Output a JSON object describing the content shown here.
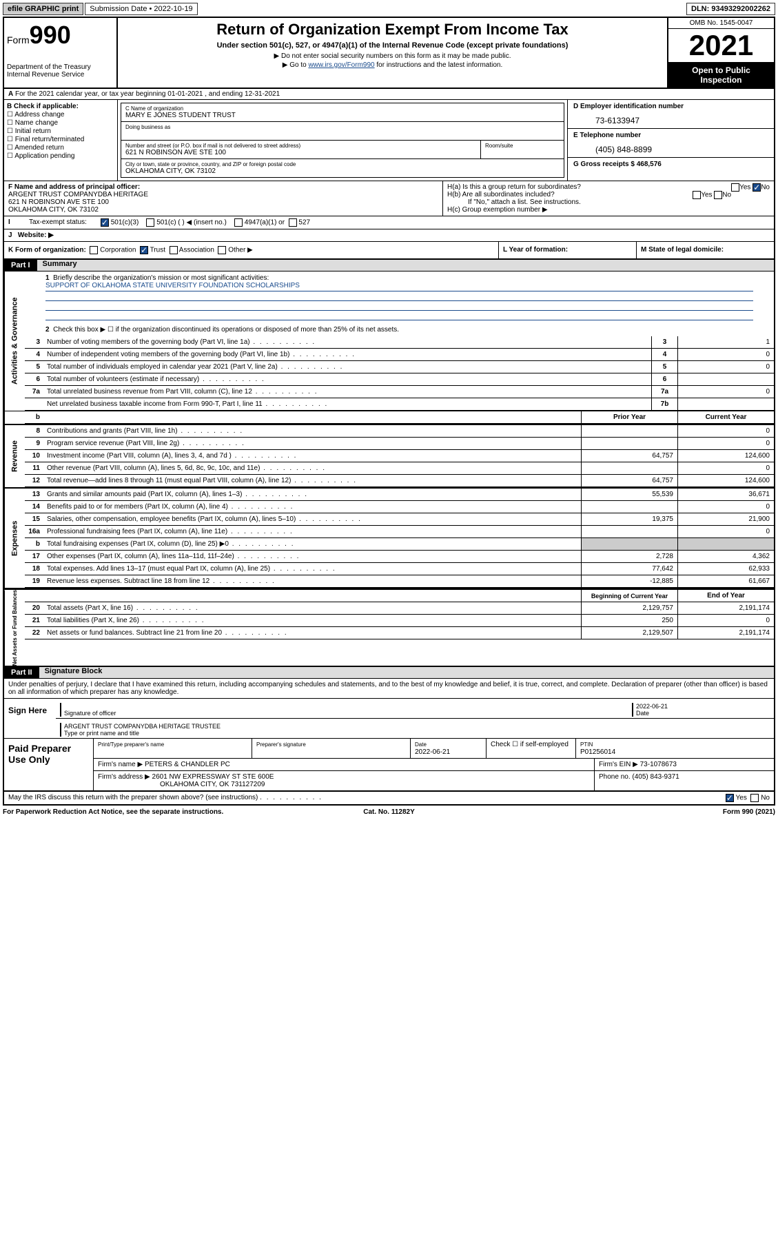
{
  "top": {
    "efile": "efile GRAPHIC print",
    "submission_label": "Submission Date • 2022-10-19",
    "dln": "DLN: 93493292002262"
  },
  "header": {
    "form_prefix": "Form",
    "form_num": "990",
    "dept": "Department of the Treasury\nInternal Revenue Service",
    "title": "Return of Organization Exempt From Income Tax",
    "sub": "Under section 501(c), 527, or 4947(a)(1) of the Internal Revenue Code (except private foundations)",
    "note1": "▶ Do not enter social security numbers on this form as it may be made public.",
    "note2_pre": "▶ Go to ",
    "note2_link": "www.irs.gov/Form990",
    "note2_post": " for instructions and the latest information.",
    "omb": "OMB No. 1545-0047",
    "year": "2021",
    "otp": "Open to Public Inspection"
  },
  "rowA": {
    "text": "For the 2021 calendar year, or tax year beginning 01-01-2021   , and ending 12-31-2021"
  },
  "colB": {
    "label": "B Check if applicable:",
    "items": [
      "Address change",
      "Name change",
      "Initial return",
      "Final return/terminated",
      "Amended return",
      "Application pending"
    ]
  },
  "boxC": {
    "c_label": "C Name of organization",
    "name": "MARY E JONES STUDENT TRUST",
    "dba": "Doing business as",
    "addr_label": "Number and street (or P.O. box if mail is not delivered to street address)",
    "addr": "621 N ROBINSON AVE STE 100",
    "suite": "Room/suite",
    "city_label": "City or town, state or province, country, and ZIP or foreign postal code",
    "city": "OKLAHOMA CITY, OK  73102"
  },
  "colD": {
    "d_label": "D Employer identification number",
    "ein": "73-6133947",
    "e_label": "E Telephone number",
    "phone": "(405) 848-8899",
    "g_label": "G Gross receipts $ 468,576"
  },
  "rowF": {
    "f_label": "F  Name and address of principal officer:",
    "f_val": "ARGENT TRUST COMPANYDBA HERITAGE\n621 N ROBINSON AVE STE 100\nOKLAHOMA CITY, OK  73102",
    "ha": "H(a)  Is this a group return for subordinates?",
    "hb": "H(b)  Are all subordinates included?",
    "hb_note": "If \"No,\" attach a list. See instructions.",
    "hc": "H(c)  Group exemption number ▶",
    "yes": "Yes",
    "no": "No"
  },
  "rowI": {
    "label": "Tax-exempt status:",
    "opts": [
      "501(c)(3)",
      "501(c) (  ) ◀ (insert no.)",
      "4947(a)(1) or",
      "527"
    ]
  },
  "rowJ": {
    "label": "Website: ▶"
  },
  "rowK": {
    "label": "K Form of organization:",
    "opts": [
      "Corporation",
      "Trust",
      "Association",
      "Other ▶"
    ],
    "l": "L Year of formation:",
    "m": "M State of legal domicile:"
  },
  "partI": {
    "hdr": "Part I",
    "title": "Summary",
    "mission_label": "Briefly describe the organization's mission or most significant activities:",
    "mission": "SUPPORT OF OKLAHOMA STATE UNIVERSITY FOUNDATION SCHOLARSHIPS",
    "line2": "Check this box ▶ ☐  if the organization discontinued its operations or disposed of more than 25% of its net assets.",
    "vtabs": {
      "ag": "Activities & Governance",
      "rev": "Revenue",
      "exp": "Expenses",
      "nab": "Net Assets or Fund Balances"
    },
    "cols": {
      "prior": "Prior Year",
      "current": "Current Year",
      "boy": "Beginning of Current Year",
      "eoy": "End of Year"
    },
    "lines": [
      {
        "n": "3",
        "t": "Number of voting members of the governing body (Part VI, line 1a)",
        "box": "3",
        "v": "1"
      },
      {
        "n": "4",
        "t": "Number of independent voting members of the governing body (Part VI, line 1b)",
        "box": "4",
        "v": "0"
      },
      {
        "n": "5",
        "t": "Total number of individuals employed in calendar year 2021 (Part V, line 2a)",
        "box": "5",
        "v": "0"
      },
      {
        "n": "6",
        "t": "Total number of volunteers (estimate if necessary)",
        "box": "6",
        "v": ""
      },
      {
        "n": "7a",
        "t": "Total unrelated business revenue from Part VIII, column (C), line 12",
        "box": "7a",
        "v": "0"
      },
      {
        "n": "",
        "t": "Net unrelated business taxable income from Form 990-T, Part I, line 11",
        "box": "7b",
        "v": ""
      }
    ],
    "rev": [
      {
        "n": "8",
        "t": "Contributions and grants (Part VIII, line 1h)",
        "p": "",
        "c": "0"
      },
      {
        "n": "9",
        "t": "Program service revenue (Part VIII, line 2g)",
        "p": "",
        "c": "0"
      },
      {
        "n": "10",
        "t": "Investment income (Part VIII, column (A), lines 3, 4, and 7d )",
        "p": "64,757",
        "c": "124,600"
      },
      {
        "n": "11",
        "t": "Other revenue (Part VIII, column (A), lines 5, 6d, 8c, 9c, 10c, and 11e)",
        "p": "",
        "c": "0"
      },
      {
        "n": "12",
        "t": "Total revenue—add lines 8 through 11 (must equal Part VIII, column (A), line 12)",
        "p": "64,757",
        "c": "124,600"
      }
    ],
    "exp": [
      {
        "n": "13",
        "t": "Grants and similar amounts paid (Part IX, column (A), lines 1–3)",
        "p": "55,539",
        "c": "36,671"
      },
      {
        "n": "14",
        "t": "Benefits paid to or for members (Part IX, column (A), line 4)",
        "p": "",
        "c": "0"
      },
      {
        "n": "15",
        "t": "Salaries, other compensation, employee benefits (Part IX, column (A), lines 5–10)",
        "p": "19,375",
        "c": "21,900"
      },
      {
        "n": "16a",
        "t": "Professional fundraising fees (Part IX, column (A), line 11e)",
        "p": "",
        "c": "0"
      },
      {
        "n": "b",
        "t": "Total fundraising expenses (Part IX, column (D), line 25) ▶0",
        "grey": true
      },
      {
        "n": "17",
        "t": "Other expenses (Part IX, column (A), lines 11a–11d, 11f–24e)",
        "p": "2,728",
        "c": "4,362"
      },
      {
        "n": "18",
        "t": "Total expenses. Add lines 13–17 (must equal Part IX, column (A), line 25)",
        "p": "77,642",
        "c": "62,933"
      },
      {
        "n": "19",
        "t": "Revenue less expenses. Subtract line 18 from line 12",
        "p": "-12,885",
        "c": "61,667"
      }
    ],
    "nab": [
      {
        "n": "20",
        "t": "Total assets (Part X, line 16)",
        "p": "2,129,757",
        "c": "2,191,174"
      },
      {
        "n": "21",
        "t": "Total liabilities (Part X, line 26)",
        "p": "250",
        "c": "0"
      },
      {
        "n": "22",
        "t": "Net assets or fund balances. Subtract line 21 from line 20",
        "p": "2,129,507",
        "c": "2,191,174"
      }
    ]
  },
  "partII": {
    "hdr": "Part II",
    "title": "Signature Block",
    "intro": "Under penalties of perjury, I declare that I have examined this return, including accompanying schedules and statements, and to the best of my knowledge and belief, it is true, correct, and complete. Declaration of preparer (other than officer) is based on all information of which preparer has any knowledge.",
    "sign_here": "Sign Here",
    "sig_officer": "Signature of officer",
    "sig_date": "2022-06-21",
    "date_lbl": "Date",
    "name_title": "ARGENT TRUST COMPANYDBA HERITAGE  TRUSTEE",
    "name_lbl": "Type or print name and title",
    "paid": "Paid Preparer Use Only",
    "prep_name_lbl": "Print/Type preparer's name",
    "prep_sig_lbl": "Preparer's signature",
    "prep_date_lbl": "Date",
    "prep_date": "2022-06-21",
    "prep_check": "Check ☐ if self-employed",
    "ptin_lbl": "PTIN",
    "ptin": "P01256014",
    "firm_name_lbl": "Firm's name    ▶",
    "firm_name": "PETERS & CHANDLER PC",
    "firm_ein_lbl": "Firm's EIN ▶",
    "firm_ein": "73-1078673",
    "firm_addr_lbl": "Firm's address ▶",
    "firm_addr": "2601 NW EXPRESSWAY ST STE 600E",
    "firm_city": "OKLAHOMA CITY, OK  731127209",
    "firm_phone_lbl": "Phone no.",
    "firm_phone": "(405) 843-9371",
    "may_irs": "May the IRS discuss this return with the preparer shown above? (see instructions)",
    "yes": "Yes",
    "no": "No"
  },
  "footer": {
    "pra": "For Paperwork Reduction Act Notice, see the separate instructions.",
    "cat": "Cat. No. 11282Y",
    "form": "Form 990 (2021)"
  }
}
